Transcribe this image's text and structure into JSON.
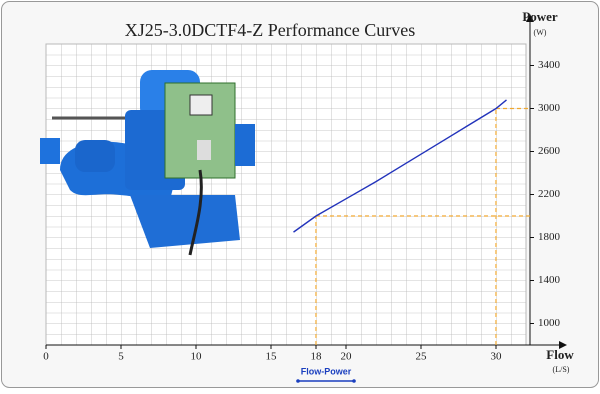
{
  "chart_data": {
    "type": "line",
    "title": "XJ25-3.0DCTF4-Z  Performance Curves",
    "x_label": "Flow",
    "x_unit": "(L/S)",
    "y_label": "Power",
    "y_unit": "(W)",
    "series": [
      {
        "name": "Flow-Power",
        "color": "#2233bb",
        "x": [
          16.5,
          18,
          20,
          22,
          24,
          26,
          28,
          30,
          30.7
        ],
        "values": [
          1850,
          2000,
          2160,
          2320,
          2490,
          2660,
          2830,
          3000,
          3080
        ]
      }
    ],
    "reference_lines": {
      "color": "#f0a830",
      "x": [
        18,
        30
      ],
      "y": [
        2000,
        3000
      ]
    },
    "xlim": [
      0,
      32
    ],
    "xticks": [
      0,
      5,
      10,
      15,
      18,
      20,
      25,
      30
    ],
    "ylim": [
      800,
      3600
    ],
    "yticks": [
      1000,
      1400,
      1800,
      2200,
      2600,
      3000,
      3400
    ],
    "grid": true
  }
}
